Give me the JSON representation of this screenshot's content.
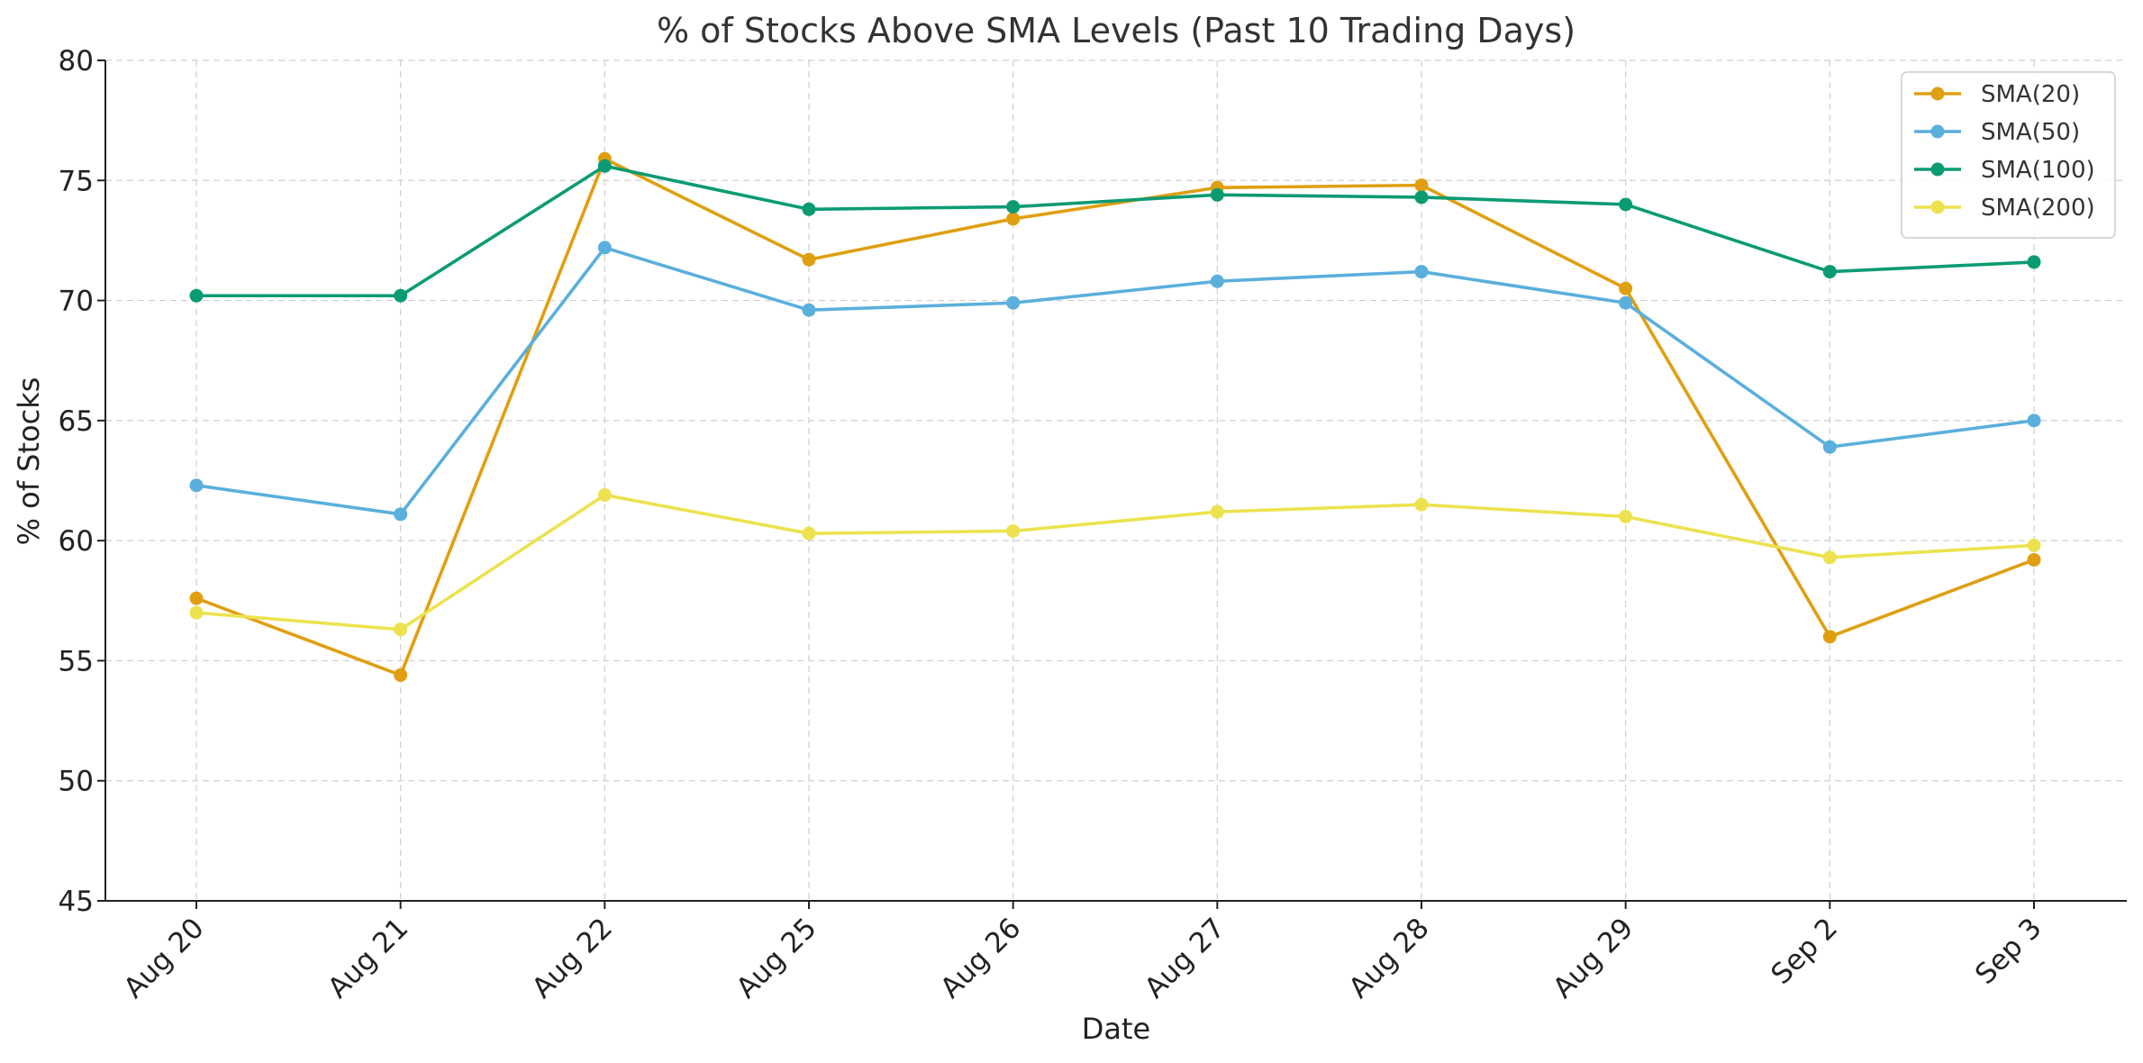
{
  "chart_data": {
    "type": "line",
    "title": "% of Stocks Above SMA Levels (Past 10 Trading Days)",
    "xlabel": "Date",
    "ylabel": "% of Stocks",
    "categories": [
      "Aug 20",
      "Aug 21",
      "Aug 22",
      "Aug 25",
      "Aug 26",
      "Aug 27",
      "Aug 28",
      "Aug 29",
      "Sep 2",
      "Sep 3"
    ],
    "ylim": [
      45,
      80
    ],
    "yticks": [
      45,
      50,
      55,
      60,
      65,
      70,
      75,
      80
    ],
    "grid": true,
    "legend_position": "top-right",
    "series": [
      {
        "name": "SMA(20)",
        "color": "#e09f11",
        "values": [
          57.6,
          54.4,
          75.9,
          71.7,
          73.4,
          74.7,
          74.8,
          70.5,
          56.0,
          59.2
        ]
      },
      {
        "name": "SMA(50)",
        "color": "#5aafdc",
        "values": [
          62.3,
          61.1,
          72.2,
          69.6,
          69.9,
          70.8,
          71.2,
          69.9,
          63.9,
          65.0
        ]
      },
      {
        "name": "SMA(100)",
        "color": "#0b9b72",
        "values": [
          70.2,
          70.2,
          75.6,
          73.8,
          73.9,
          74.4,
          74.3,
          74.0,
          71.2,
          71.6
        ]
      },
      {
        "name": "SMA(200)",
        "color": "#ece24f",
        "values": [
          57.0,
          56.3,
          61.9,
          60.3,
          60.4,
          61.2,
          61.5,
          61.0,
          59.3,
          59.8
        ]
      }
    ]
  }
}
